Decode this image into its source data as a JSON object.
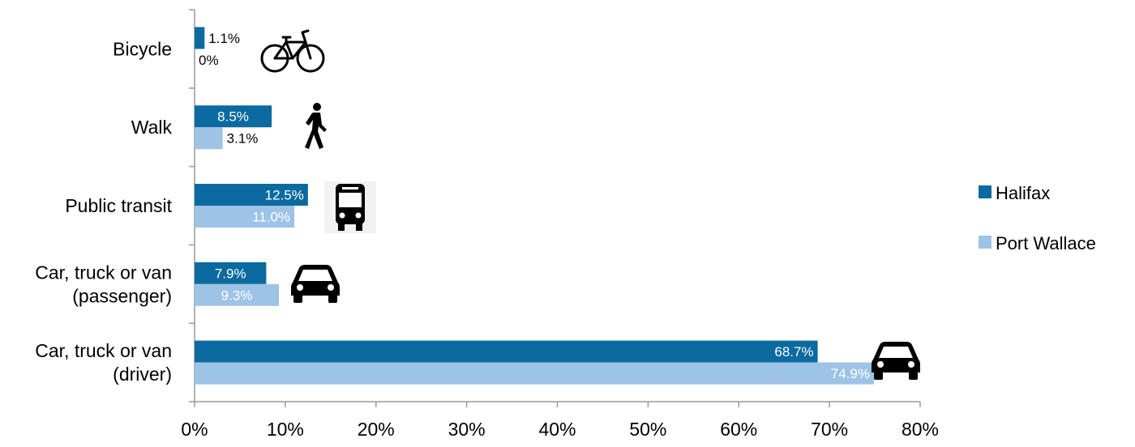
{
  "chart_data": {
    "type": "bar",
    "orientation": "horizontal",
    "title": "",
    "xlabel": "",
    "ylabel": "",
    "xlim": [
      0,
      80
    ],
    "x_ticks": [
      "0%",
      "10%",
      "20%",
      "30%",
      "40%",
      "50%",
      "60%",
      "70%",
      "80%"
    ],
    "grid": false,
    "legend_position": "right",
    "categories": [
      {
        "lines": [
          "Bicycle"
        ],
        "icon": "bicycle-icon"
      },
      {
        "lines": [
          "Walk"
        ],
        "icon": "pedestrian-icon"
      },
      {
        "lines": [
          "Public transit"
        ],
        "icon": "bus-icon"
      },
      {
        "lines": [
          "Car, truck or van",
          "(passenger)"
        ],
        "icon": "car-icon"
      },
      {
        "lines": [
          "Car, truck or van",
          "(driver)"
        ],
        "icon": "car-icon"
      }
    ],
    "series": [
      {
        "name": "Halifax",
        "color": "#0B6A9F",
        "values": [
          1.1,
          8.5,
          12.5,
          7.9,
          68.7
        ],
        "labels": [
          "1.1%",
          "8.5%",
          "12.5%",
          "7.9%",
          "68.7%"
        ]
      },
      {
        "name": "Port Wallace",
        "color": "#9DC3E6",
        "values": [
          0,
          3.1,
          11.0,
          9.3,
          74.9
        ],
        "labels": [
          "0%",
          "3.1%",
          "11.0%",
          "9.3%",
          "74.9%"
        ]
      }
    ]
  }
}
